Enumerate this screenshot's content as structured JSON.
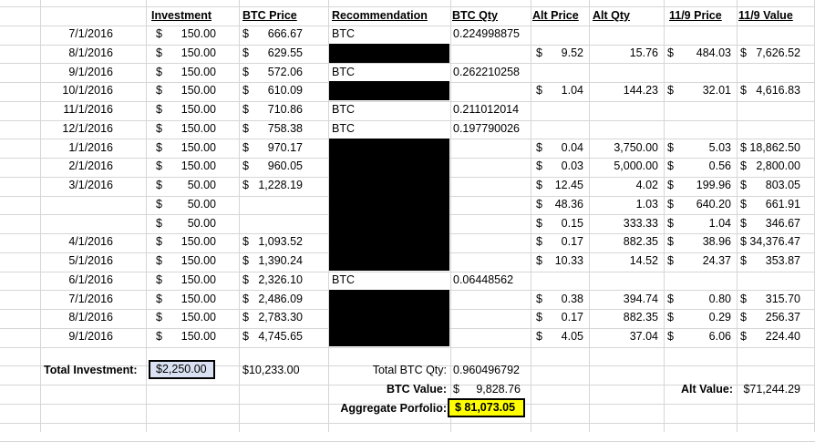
{
  "headers": {
    "investment": "Investment",
    "btc_price": "BTC Price",
    "recommendation": "Recommendation",
    "btc_qty": "BTC Qty",
    "alt_price": "Alt Price",
    "alt_qty": "Alt Qty",
    "price_119": "11/9 Price",
    "value_119": "11/9 Value"
  },
  "rows": [
    {
      "date": "7/1/2016",
      "inv": "150.00",
      "btc": "666.67",
      "rec": "BTC",
      "qty": "0.224998875",
      "ap": "",
      "aq": "",
      "p": "",
      "v": "",
      "black": false
    },
    {
      "date": "8/1/2016",
      "inv": "150.00",
      "btc": "629.55",
      "rec": "",
      "qty": "",
      "ap": "9.52",
      "aq": "15.76",
      "p": "484.03",
      "v": "7,626.52",
      "black": true
    },
    {
      "date": "9/1/2016",
      "inv": "150.00",
      "btc": "572.06",
      "rec": "BTC",
      "qty": "0.262210258",
      "ap": "",
      "aq": "",
      "p": "",
      "v": "",
      "black": false
    },
    {
      "date": "10/1/2016",
      "inv": "150.00",
      "btc": "610.09",
      "rec": "",
      "qty": "",
      "ap": "1.04",
      "aq": "144.23",
      "p": "32.01",
      "v": "4,616.83",
      "black": true
    },
    {
      "date": "11/1/2016",
      "inv": "150.00",
      "btc": "710.86",
      "rec": "BTC",
      "qty": "0.211012014",
      "ap": "",
      "aq": "",
      "p": "",
      "v": "",
      "black": false
    },
    {
      "date": "12/1/2016",
      "inv": "150.00",
      "btc": "758.38",
      "rec": "BTC",
      "qty": "0.197790026",
      "ap": "",
      "aq": "",
      "p": "",
      "v": "",
      "black": false
    },
    {
      "date": "1/1/2016",
      "inv": "150.00",
      "btc": "970.17",
      "rec": "",
      "qty": "",
      "ap": "0.04",
      "aq": "3,750.00",
      "p": "5.03",
      "v": "18,862.50",
      "black": true
    },
    {
      "date": "2/1/2016",
      "inv": "150.00",
      "btc": "960.05",
      "rec": "",
      "qty": "",
      "ap": "0.03",
      "aq": "5,000.00",
      "p": "0.56",
      "v": "2,800.00",
      "black": true
    },
    {
      "date": "3/1/2016",
      "inv": "50.00",
      "btc": "1,228.19",
      "rec": "",
      "qty": "",
      "ap": "12.45",
      "aq": "4.02",
      "p": "199.96",
      "v": "803.05",
      "black": true
    },
    {
      "date": "",
      "inv": "50.00",
      "btc": "",
      "rec": "",
      "qty": "",
      "ap": "48.36",
      "aq": "1.03",
      "p": "640.20",
      "v": "661.91",
      "black": true
    },
    {
      "date": "",
      "inv": "50.00",
      "btc": "",
      "rec": "",
      "qty": "",
      "ap": "0.15",
      "aq": "333.33",
      "p": "1.04",
      "v": "346.67",
      "black": true
    },
    {
      "date": "4/1/2016",
      "inv": "150.00",
      "btc": "1,093.52",
      "rec": "",
      "qty": "",
      "ap": "0.17",
      "aq": "882.35",
      "p": "38.96",
      "v": "34,376.47",
      "black": true
    },
    {
      "date": "5/1/2016",
      "inv": "150.00",
      "btc": "1,390.24",
      "rec": "",
      "qty": "",
      "ap": "10.33",
      "aq": "14.52",
      "p": "24.37",
      "v": "353.87",
      "black": true
    },
    {
      "date": "6/1/2016",
      "inv": "150.00",
      "btc": "2,326.10",
      "rec": "BTC",
      "qty": "0.06448562",
      "ap": "",
      "aq": "",
      "p": "",
      "v": "",
      "black": false
    },
    {
      "date": "7/1/2016",
      "inv": "150.00",
      "btc": "2,486.09",
      "rec": "",
      "qty": "",
      "ap": "0.38",
      "aq": "394.74",
      "p": "0.80",
      "v": "315.70",
      "black": true
    },
    {
      "date": "8/1/2016",
      "inv": "150.00",
      "btc": "2,783.30",
      "rec": "",
      "qty": "",
      "ap": "0.17",
      "aq": "882.35",
      "p": "0.29",
      "v": "256.37",
      "black": true
    },
    {
      "date": "9/1/2016",
      "inv": "150.00",
      "btc": "4,745.65",
      "rec": "",
      "qty": "",
      "ap": "4.05",
      "aq": "37.04",
      "p": "6.06",
      "v": "224.40",
      "black": true
    }
  ],
  "summary": {
    "total_investment_label": "Total Investment:",
    "total_investment_value": "$2,250.00",
    "btc_price_total": "$10,233.00",
    "total_btc_qty_label": "Total BTC Qty:",
    "total_btc_qty_value": "0.960496792",
    "btc_value_label": "BTC Value:",
    "btc_value_symbol": "$",
    "btc_value_value": "9,828.76",
    "alt_value_label": "Alt Value:",
    "alt_value_value": "$71,244.29",
    "aggregate_label": "Aggregate Porfolio:",
    "aggregate_value": "$ 81,073.05"
  },
  "currency_symbol": "$",
  "colors": {
    "gridline": "#d6d6d6",
    "highlight_blue": "#d9e1f2",
    "highlight_yellow": "#ffff00",
    "redaction": "#000000"
  }
}
